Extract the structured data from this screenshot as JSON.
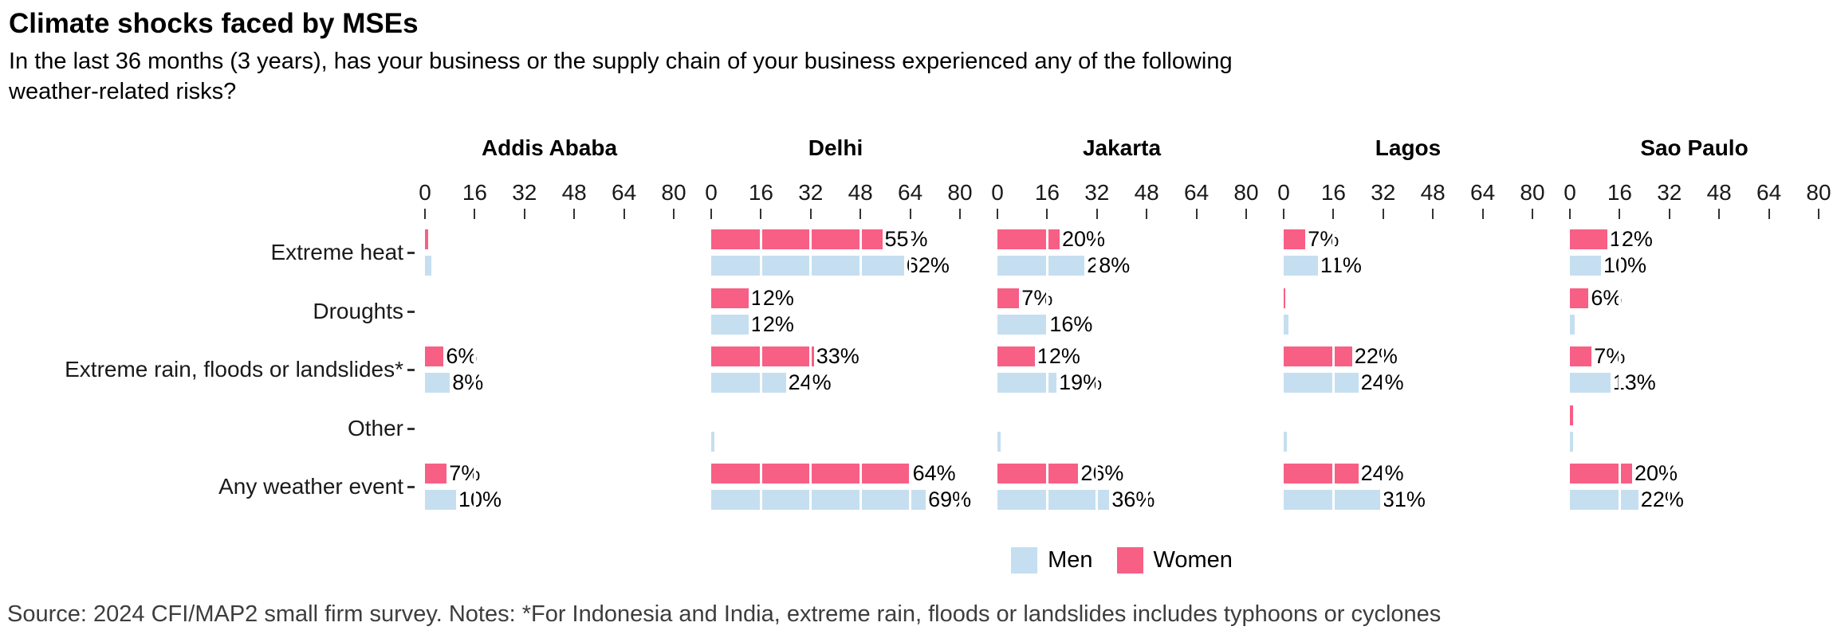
{
  "title": "Climate shocks faced by MSEs",
  "subtitle": {
    "line1": "In the last 36 months (3 years), has your business or the supply chain of your business experienced any of the following",
    "line2": "weather-related risks?"
  },
  "legend": {
    "men_label": "Men",
    "women_label": "Women"
  },
  "source": "Source: 2024 CFI/MAP2 small firm survey. Notes: *For Indonesia and India, extreme rain, floods or landslides includes typhoons or cyclones",
  "colors": {
    "men": "#c5dff0",
    "women": "#f75f85",
    "axis": "#333333",
    "source_text": "#3d3d3d"
  },
  "chart_data": {
    "type": "bar",
    "orientation": "horizontal",
    "unit": "%",
    "axis_ticks": [
      0,
      16,
      32,
      48,
      64,
      80
    ],
    "axis_max": 80,
    "grid": "white major gridlines drawn over bars every 16 units",
    "legend_position": "bottom",
    "categories": [
      "Extreme heat",
      "Droughts",
      "Extreme rain, floods or landslides*",
      "Other",
      "Any weather event"
    ],
    "series_names": [
      "Women",
      "Men"
    ],
    "panels": [
      {
        "city": "Addis Ababa",
        "women": [
          {
            "v": 1,
            "label": ""
          },
          {
            "v": 0,
            "label": ""
          },
          {
            "v": 6,
            "label": "6%"
          },
          {
            "v": 0,
            "label": ""
          },
          {
            "v": 7,
            "label": "7%"
          }
        ],
        "men": [
          {
            "v": 2,
            "label": ""
          },
          {
            "v": 0,
            "label": ""
          },
          {
            "v": 8,
            "label": "8%"
          },
          {
            "v": 0,
            "label": ""
          },
          {
            "v": 10,
            "label": "10%"
          }
        ]
      },
      {
        "city": "Delhi",
        "women": [
          {
            "v": 55,
            "label": "55%"
          },
          {
            "v": 12,
            "label": "12%"
          },
          {
            "v": 33,
            "label": "33%"
          },
          {
            "v": 0,
            "label": ""
          },
          {
            "v": 64,
            "label": "64%"
          }
        ],
        "men": [
          {
            "v": 62,
            "label": "62%"
          },
          {
            "v": 12,
            "label": "12%"
          },
          {
            "v": 24,
            "label": "24%"
          },
          {
            "v": 1,
            "label": ""
          },
          {
            "v": 69,
            "label": "69%"
          }
        ]
      },
      {
        "city": "Jakarta",
        "women": [
          {
            "v": 20,
            "label": "20%"
          },
          {
            "v": 7,
            "label": "7%"
          },
          {
            "v": 12,
            "label": "12%"
          },
          {
            "v": 0,
            "label": ""
          },
          {
            "v": 26,
            "label": "26%"
          }
        ],
        "men": [
          {
            "v": 28,
            "label": "28%"
          },
          {
            "v": 16,
            "label": "16%"
          },
          {
            "v": 19,
            "label": "19%"
          },
          {
            "v": 1,
            "label": ""
          },
          {
            "v": 36,
            "label": "36%"
          }
        ]
      },
      {
        "city": "Lagos",
        "women": [
          {
            "v": 7,
            "label": "7%"
          },
          {
            "v": 0.5,
            "label": ""
          },
          {
            "v": 22,
            "label": "22%"
          },
          {
            "v": 0,
            "label": ""
          },
          {
            "v": 24,
            "label": "24%"
          }
        ],
        "men": [
          {
            "v": 11,
            "label": "11%"
          },
          {
            "v": 1.5,
            "label": ""
          },
          {
            "v": 24,
            "label": "24%"
          },
          {
            "v": 1,
            "label": ""
          },
          {
            "v": 31,
            "label": "31%"
          }
        ]
      },
      {
        "city": "Sao Paulo",
        "women": [
          {
            "v": 12,
            "label": "12%"
          },
          {
            "v": 6,
            "label": "6%"
          },
          {
            "v": 7,
            "label": "7%"
          },
          {
            "v": 1,
            "label": ""
          },
          {
            "v": 20,
            "label": "20%"
          }
        ],
        "men": [
          {
            "v": 10,
            "label": "10%"
          },
          {
            "v": 1.5,
            "label": ""
          },
          {
            "v": 13,
            "label": "13%"
          },
          {
            "v": 1,
            "label": ""
          },
          {
            "v": 22,
            "label": "22%"
          }
        ]
      }
    ]
  }
}
